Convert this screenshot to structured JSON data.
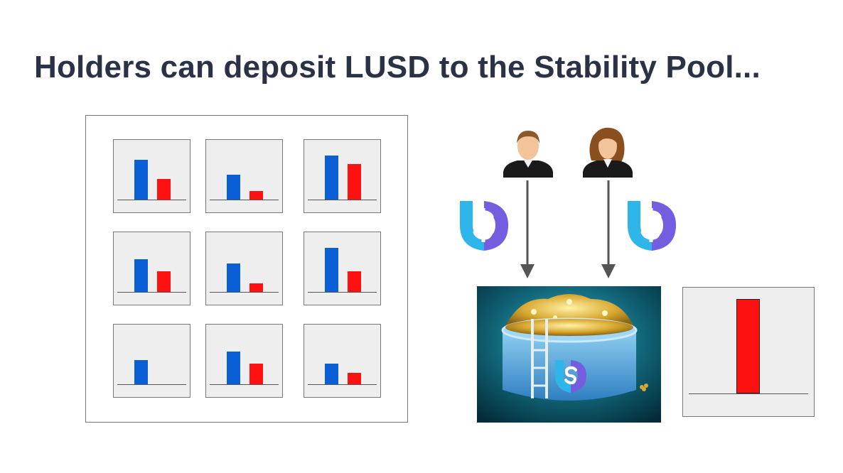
{
  "slide": {
    "title": "Holders can deposit LUSD to the Stability Pool..."
  },
  "troves": [
    {
      "collateral": 0.7,
      "debt": 0.36
    },
    {
      "collateral": 0.44,
      "debt": 0.15
    },
    {
      "collateral": 0.78,
      "debt": 0.62
    },
    {
      "collateral": 0.57,
      "debt": 0.36
    },
    {
      "collateral": 0.5,
      "debt": 0.15
    },
    {
      "collateral": 0.78,
      "debt": 0.36
    },
    {
      "collateral": 0.43,
      "debt": 0.0
    },
    {
      "collateral": 0.57,
      "debt": 0.36
    },
    {
      "collateral": 0.36,
      "debt": 0.2
    }
  ],
  "stability_pool": {
    "level": 0.85
  },
  "depositors": [
    {
      "icon": "male-user-icon"
    },
    {
      "icon": "female-user-icon"
    }
  ],
  "colors": {
    "title": "#2b3245",
    "collateral_bar": "#0a5fd6",
    "debt_bar": "#ff1111",
    "lusd_blue": "#2eb6ea",
    "lusd_purple": "#745ddf",
    "arrow": "#555555"
  }
}
